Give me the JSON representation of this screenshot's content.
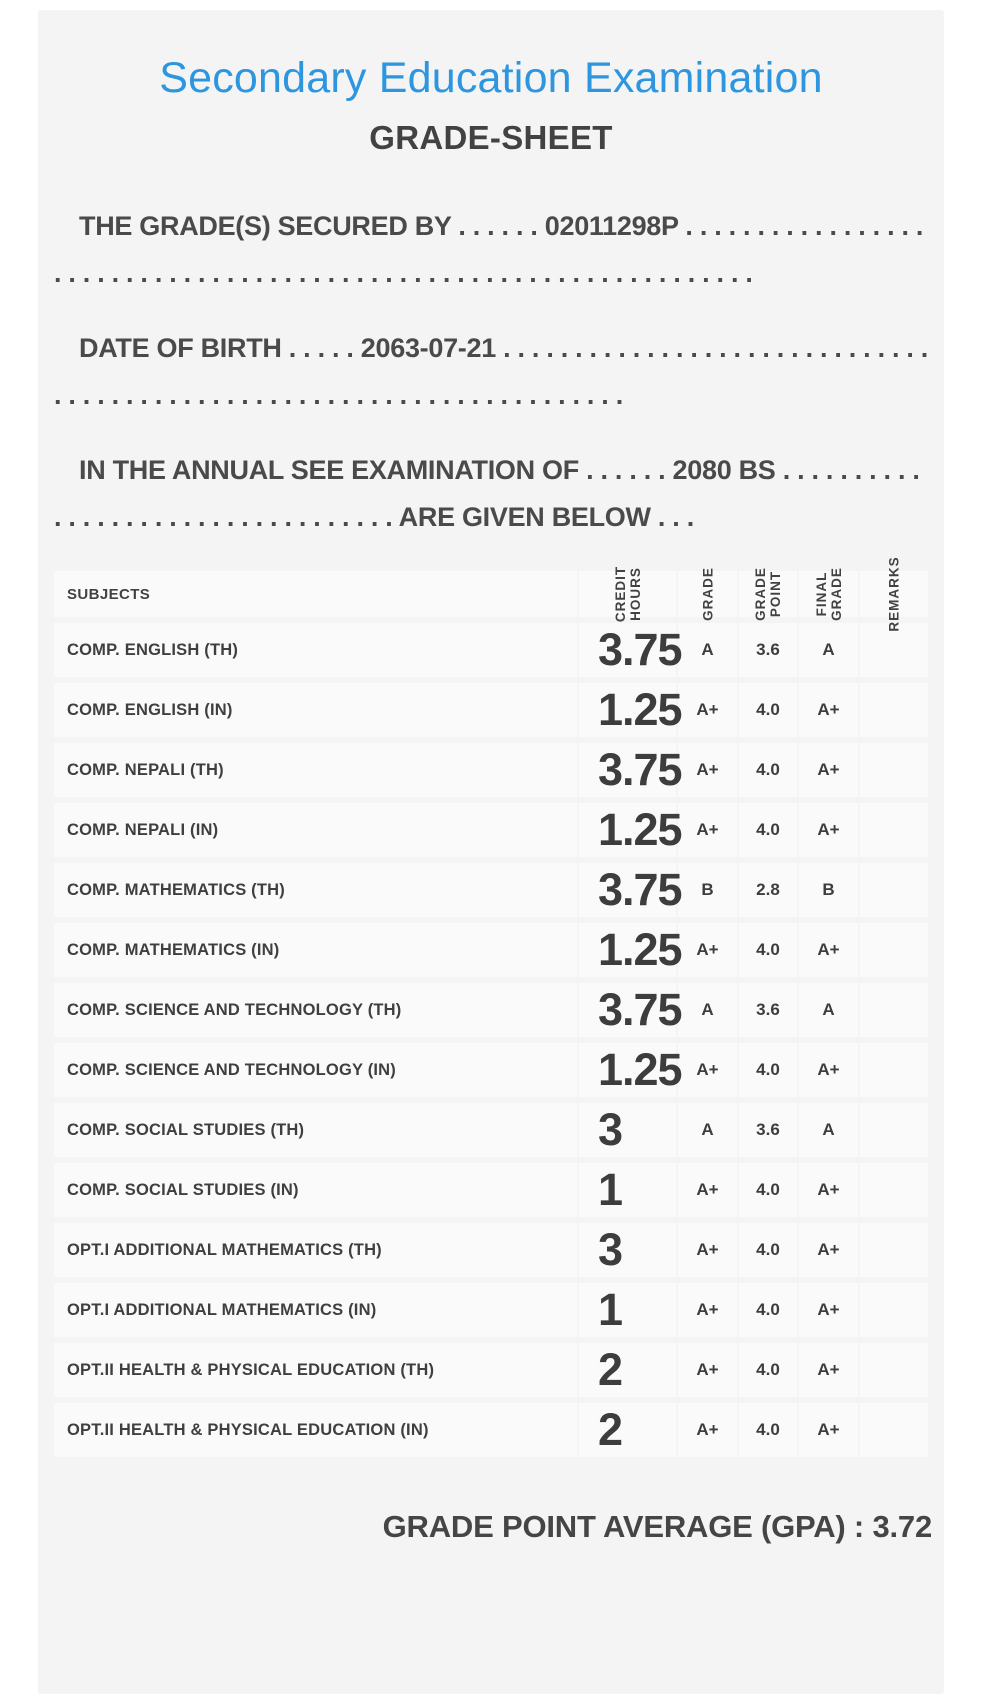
{
  "header": {
    "title": "Secondary Education Examination",
    "subtitle": "GRADE-SHEET",
    "accent_color": "#2d96df",
    "text_color": "#424242"
  },
  "student": {
    "symbol_number": "02011298P",
    "date_of_birth": "2063-07-21",
    "examination_year": "2080 BS"
  },
  "statements": {
    "secured_by": "THE GRADE(S) SECURED BY . . . . . . 02011298P . . . . . . . . . . . . . . . . . . . . . . . . . . . . . . . . . . . . . . . . . . . . . . . . . . . . . . . . . . . . . . . . . .",
    "date_of_birth": "DATE OF BIRTH . . . . . 2063-07-21 . . . . . . . . . . . . . . . . . . . . . . . . . . . . . . . . . . . . . . . . . . . . . . . . . . . . . . . . . . . . . . . . . . . . . .",
    "examination": "IN THE ANNUAL SEE EXAMINATION OF . . . . . . 2080 BS . . . . . . . . . . . . . . . . . . . . . . . . . . . . . . . . . . ARE GIVEN BELOW . . ."
  },
  "table": {
    "headers": [
      {
        "id": "subjects",
        "label": "SUBJECTS"
      },
      {
        "id": "credit_hours",
        "label": "CREDIT\nHOURS"
      },
      {
        "id": "grade",
        "label": "GRADE"
      },
      {
        "id": "grade_point",
        "label": "GRADE\nPOINT"
      },
      {
        "id": "final_grade",
        "label": "FINAL\nGRADE"
      },
      {
        "id": "remarks",
        "label": "REMARKS"
      }
    ],
    "rows": [
      {
        "subject": "COMP. ENGLISH (TH)",
        "credit_hours": "3.75",
        "grade": "A",
        "grade_point": "3.6",
        "final_grade": "A",
        "remarks": ""
      },
      {
        "subject": "COMP. ENGLISH (IN)",
        "credit_hours": "1.25",
        "grade": "A+",
        "grade_point": "4.0",
        "final_grade": "A+",
        "remarks": ""
      },
      {
        "subject": "COMP. NEPALI (TH)",
        "credit_hours": "3.75",
        "grade": "A+",
        "grade_point": "4.0",
        "final_grade": "A+",
        "remarks": ""
      },
      {
        "subject": "COMP. NEPALI (IN)",
        "credit_hours": "1.25",
        "grade": "A+",
        "grade_point": "4.0",
        "final_grade": "A+",
        "remarks": ""
      },
      {
        "subject": "COMP. MATHEMATICS (TH)",
        "credit_hours": "3.75",
        "grade": "B",
        "grade_point": "2.8",
        "final_grade": "B",
        "remarks": ""
      },
      {
        "subject": "COMP. MATHEMATICS (IN)",
        "credit_hours": "1.25",
        "grade": "A+",
        "grade_point": "4.0",
        "final_grade": "A+",
        "remarks": ""
      },
      {
        "subject": "COMP. SCIENCE AND TECHNOLOGY (TH)",
        "credit_hours": "3.75",
        "grade": "A",
        "grade_point": "3.6",
        "final_grade": "A",
        "remarks": ""
      },
      {
        "subject": "COMP. SCIENCE AND TECHNOLOGY (IN)",
        "credit_hours": "1.25",
        "grade": "A+",
        "grade_point": "4.0",
        "final_grade": "A+",
        "remarks": ""
      },
      {
        "subject": "COMP. SOCIAL STUDIES (TH)",
        "credit_hours": "3",
        "grade": "A",
        "grade_point": "3.6",
        "final_grade": "A",
        "remarks": ""
      },
      {
        "subject": "COMP. SOCIAL STUDIES (IN)",
        "credit_hours": "1",
        "grade": "A+",
        "grade_point": "4.0",
        "final_grade": "A+",
        "remarks": ""
      },
      {
        "subject": "OPT.I ADDITIONAL MATHEMATICS (TH)",
        "credit_hours": "3",
        "grade": "A+",
        "grade_point": "4.0",
        "final_grade": "A+",
        "remarks": ""
      },
      {
        "subject": "OPT.I ADDITIONAL MATHEMATICS (IN)",
        "credit_hours": "1",
        "grade": "A+",
        "grade_point": "4.0",
        "final_grade": "A+",
        "remarks": ""
      },
      {
        "subject": "OPT.II HEALTH & PHYSICAL EDUCATION (TH)",
        "credit_hours": "2",
        "grade": "A+",
        "grade_point": "4.0",
        "final_grade": "A+",
        "remarks": ""
      },
      {
        "subject": "OPT.II HEALTH & PHYSICAL EDUCATION (IN)",
        "credit_hours": "2",
        "grade": "A+",
        "grade_point": "4.0",
        "final_grade": "A+",
        "remarks": ""
      }
    ]
  },
  "summary": {
    "gpa_line": "GRADE POINT AVERAGE (GPA) : 3.72",
    "gpa_value": "3.72"
  }
}
